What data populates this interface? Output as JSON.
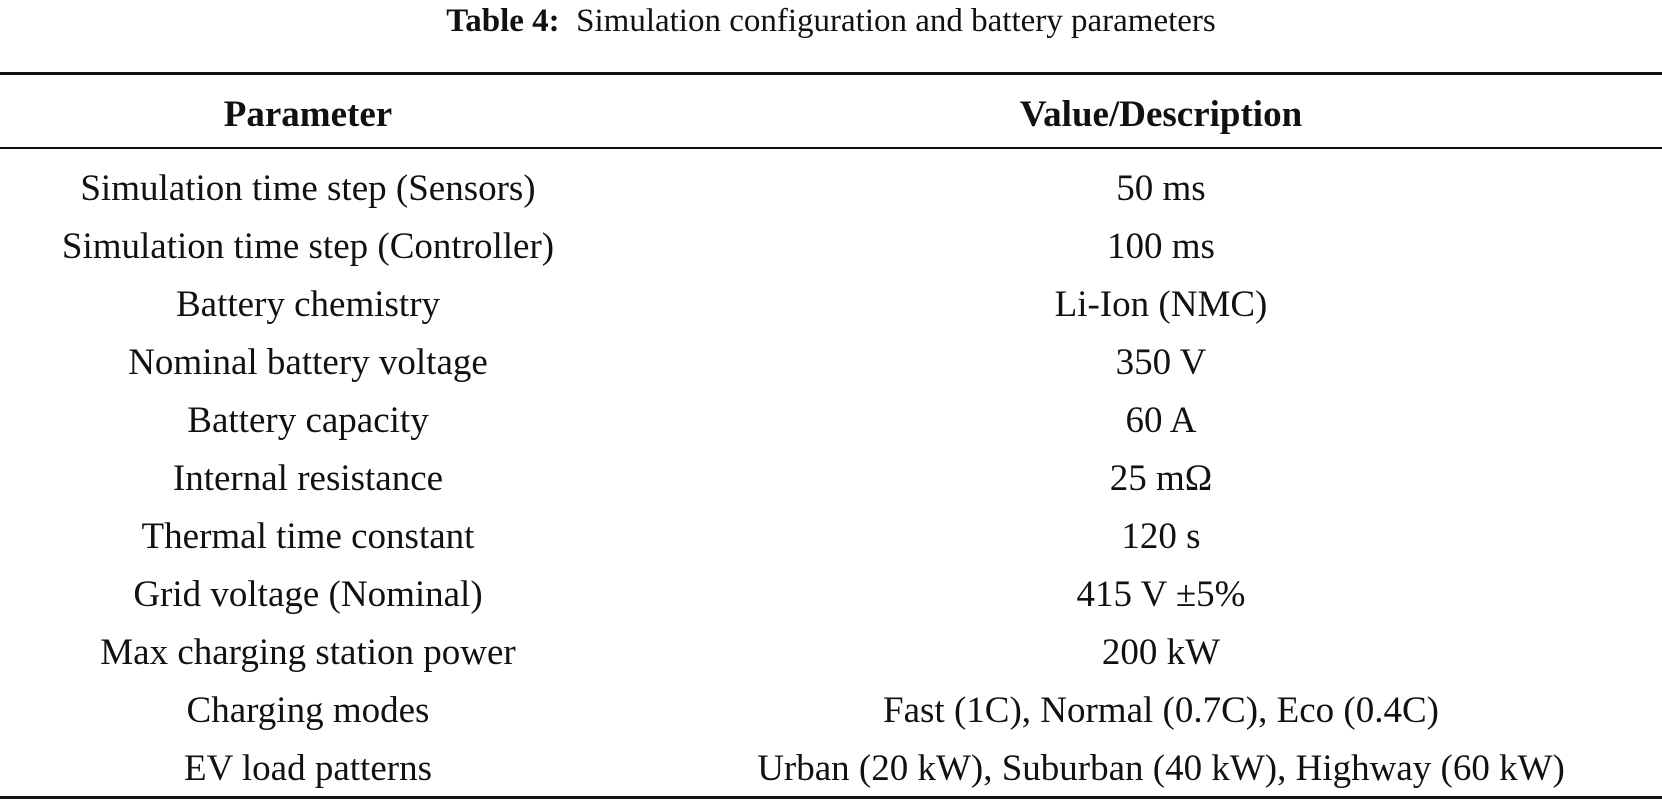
{
  "caption": {
    "label": "Table 4:",
    "text": "Simulation configuration and battery parameters"
  },
  "table": {
    "headers": [
      "Parameter",
      "Value/Description"
    ],
    "rows": [
      [
        "Simulation time step (Sensors)",
        "50 ms"
      ],
      [
        "Simulation time step (Controller)",
        "100 ms"
      ],
      [
        "Battery chemistry",
        "Li-Ion (NMC)"
      ],
      [
        "Nominal battery voltage",
        "350 V"
      ],
      [
        "Battery capacity",
        "60 A"
      ],
      [
        "Internal resistance",
        "25 mΩ"
      ],
      [
        "Thermal time constant",
        "120 s"
      ],
      [
        "Grid voltage (Nominal)",
        "415 V ±5%"
      ],
      [
        "Max charging station power",
        "200 kW"
      ],
      [
        "Charging modes",
        "Fast (1C), Normal (0.7C), Eco (0.4C)"
      ],
      [
        "EV load patterns",
        "Urban (20 kW), Suburban (40 kW), Highway (60 kW)"
      ]
    ]
  }
}
